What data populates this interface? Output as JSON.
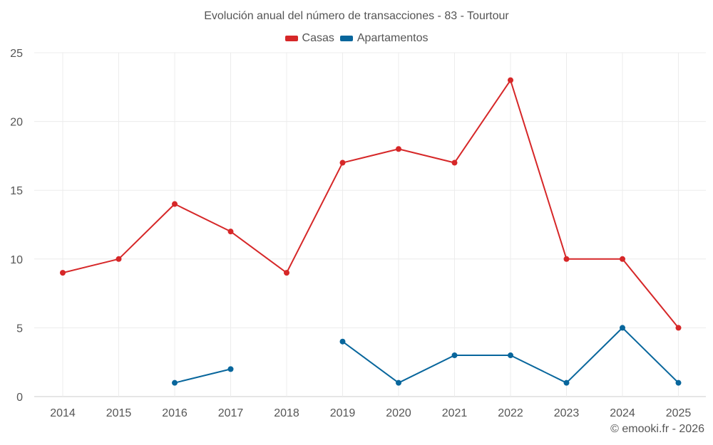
{
  "chart_data": {
    "type": "line",
    "title": "Evolución anual del número de transacciones - 83 - Tourtour",
    "xlabel": "",
    "ylabel": "",
    "categories": [
      "2014",
      "2015",
      "2016",
      "2017",
      "2018",
      "2019",
      "2020",
      "2021",
      "2022",
      "2023",
      "2024",
      "2025"
    ],
    "ylim": [
      0,
      25
    ],
    "yticks": [
      0,
      5,
      10,
      15,
      20,
      25
    ],
    "grid": true,
    "legend_position": "top-center",
    "series": [
      {
        "name": "Casas",
        "color": "#d62728",
        "values": [
          9,
          10,
          14,
          12,
          9,
          17,
          18,
          17,
          23,
          10,
          10,
          5
        ]
      },
      {
        "name": "Apartamentos",
        "color": "#08669c",
        "values": [
          null,
          null,
          1,
          2,
          null,
          4,
          1,
          3,
          3,
          1,
          5,
          1
        ]
      }
    ]
  },
  "watermark": "© emooki.fr - 2026"
}
